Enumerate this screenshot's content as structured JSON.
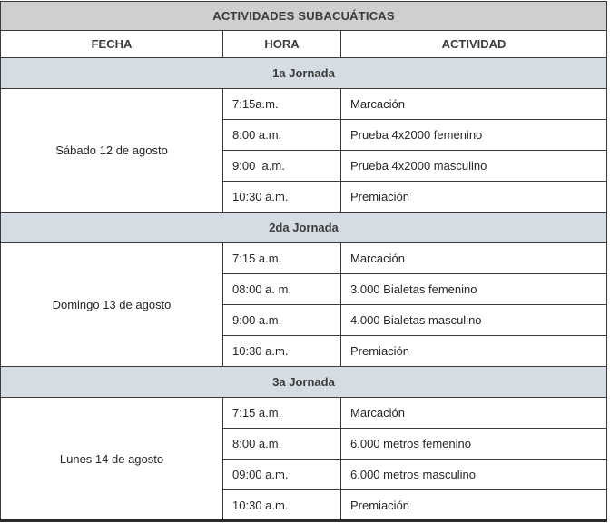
{
  "title": "ACTIVIDADES SUBACUÁTICAS",
  "columns": {
    "fecha": "FECHA",
    "hora": "HORA",
    "actividad": "ACTIVIDAD"
  },
  "sections": [
    {
      "label": "1a Jornada",
      "date": "Sábado 12 de agosto",
      "rows": [
        {
          "hora": "7:15a.m.",
          "actividad": "Marcación"
        },
        {
          "hora": "8:00 a.m.",
          "actividad": "Prueba 4x2000 femenino"
        },
        {
          "hora": "9:00  a.m.",
          "actividad": "Prueba 4x2000 masculino"
        },
        {
          "hora": "10:30 a.m.",
          "actividad": "Premiación"
        }
      ]
    },
    {
      "label": "2da Jornada",
      "date": "Domingo 13 de agosto",
      "rows": [
        {
          "hora": "7:15 a.m.",
          "actividad": "Marcación"
        },
        {
          "hora": "08:00 a. m.",
          "actividad": "3.000 Bialetas femenino"
        },
        {
          "hora": "9:00 a.m.",
          "actividad": "4.000 Bialetas masculino"
        },
        {
          "hora": "10:30 a.m.",
          "actividad": "Premiación"
        }
      ]
    },
    {
      "label": "3a Jornada",
      "date": "Lunes 14 de agosto",
      "rows": [
        {
          "hora": "7:15 a.m.",
          "actividad": "Marcación"
        },
        {
          "hora": "8:00 a.m.",
          "actividad": "6.000 metros femenino"
        },
        {
          "hora": "09:00 a.m.",
          "actividad": "6.000 metros masculino"
        },
        {
          "hora": "10:30 a.m.",
          "actividad": "Premiación"
        }
      ]
    }
  ],
  "colors": {
    "title_band": "#d0cece",
    "jornada_band": "#d6dce4",
    "border": "#3a3a3a",
    "text": "#262626"
  }
}
